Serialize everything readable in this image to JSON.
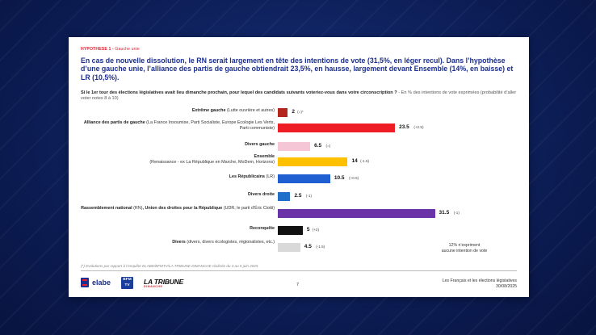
{
  "header": {
    "hypothesis_label": "HYPOTHESE 1 -",
    "hypothesis_sub": "Gauche unie",
    "headline": "En cas de nouvelle dissolution, le RN serait largement en tête des intentions de vote (31,5%, en léger recul). Dans l’hypothèse d’une gauche unie, l’alliance des partis de gauche obtiendrait 23,5%, en hausse, largement devant Ensemble (14%, en baisse) et LR (10,5%).",
    "question_bold": "Si le 1er tour des élections législatives avait lieu dimanche prochain, pour lequel des candidats suivants voteriez-vous dans votre circonscription ?",
    "question_note": " - En % des intentions de vote exprimées (probabilité d’aller voter notes 8 à 10)"
  },
  "chart_data": {
    "type": "bar",
    "orientation": "horizontal",
    "categories": [
      {
        "name": "Extrême gauche",
        "desc": " (Lutte ouvrière et autres)",
        "value": 2,
        "value_label": "2",
        "evolution": "(=)*",
        "color": "#b3261e"
      },
      {
        "name": "Alliance des partis de gauche",
        "desc": " (La France Insoumise, Parti Socialiste, Europe Ecologie Les Verts, Parti communiste)",
        "value": 23.5,
        "value_label": "23.5",
        "evolution": "(+2.5)",
        "color": "#ee1c25"
      },
      {
        "name": "Divers gauche",
        "desc": "",
        "value": 6.5,
        "value_label": "6.5",
        "evolution": "(=)",
        "color": "#f4c6d6"
      },
      {
        "name": "Ensemble",
        "desc": "(Renaissance - ex La République en Marche, MoDem, Horizons)",
        "value": 14,
        "value_label": "14",
        "evolution": "(-1.5)",
        "color": "#ffc000"
      },
      {
        "name": "Les Républicains",
        "desc": " (LR)",
        "value": 10.5,
        "value_label": "10.5",
        "evolution": "(+0.5)",
        "color": "#1f5fd1"
      },
      {
        "name": "Divers droite",
        "desc": "",
        "value": 2.5,
        "value_label": "2.5",
        "evolution": "(-1)",
        "color": "#1f6fc8"
      },
      {
        "name": "Rassemblement national",
        "desc_inline": " (RN)",
        "name2": ", Union des droites pour la République",
        "desc": " (UDR, le parti d’Éric Ciotti)",
        "value": 31.5,
        "value_label": "31.5",
        "evolution": "(-1)",
        "color": "#6a34a8"
      },
      {
        "name": "Reconquête",
        "desc": "",
        "value": 5,
        "value_label": "5",
        "evolution": "(+2)",
        "color": "#111111"
      },
      {
        "name": "Divers",
        "desc": " (divers, divers écologistes, régionalistes, etc.)",
        "value": 4.5,
        "value_label": "4.5",
        "evolution": "(-1.5)",
        "color": "#d9d9d9"
      }
    ],
    "xlim": [
      0,
      34
    ]
  },
  "side_note": {
    "line1": "12% n’expriment",
    "line2": "aucune intention de vote"
  },
  "footer": {
    "footnote": "(*) Evolutions par rapport à l’enquête ELABE/BFMTV/LA TRIBUNE DIMANCHE réalisée du 3 au 5 juin 2025",
    "page_number": "7",
    "source_line1": "Les Français et les élections législatives",
    "source_line2": "30/08/2025",
    "logo_elabe": "elabe",
    "logo_bfm_line1": "BFM",
    "logo_bfm_line2": "TV",
    "logo_tribune": "LA TRIBUNE",
    "logo_tribune_sub": "DIMANCHE"
  }
}
